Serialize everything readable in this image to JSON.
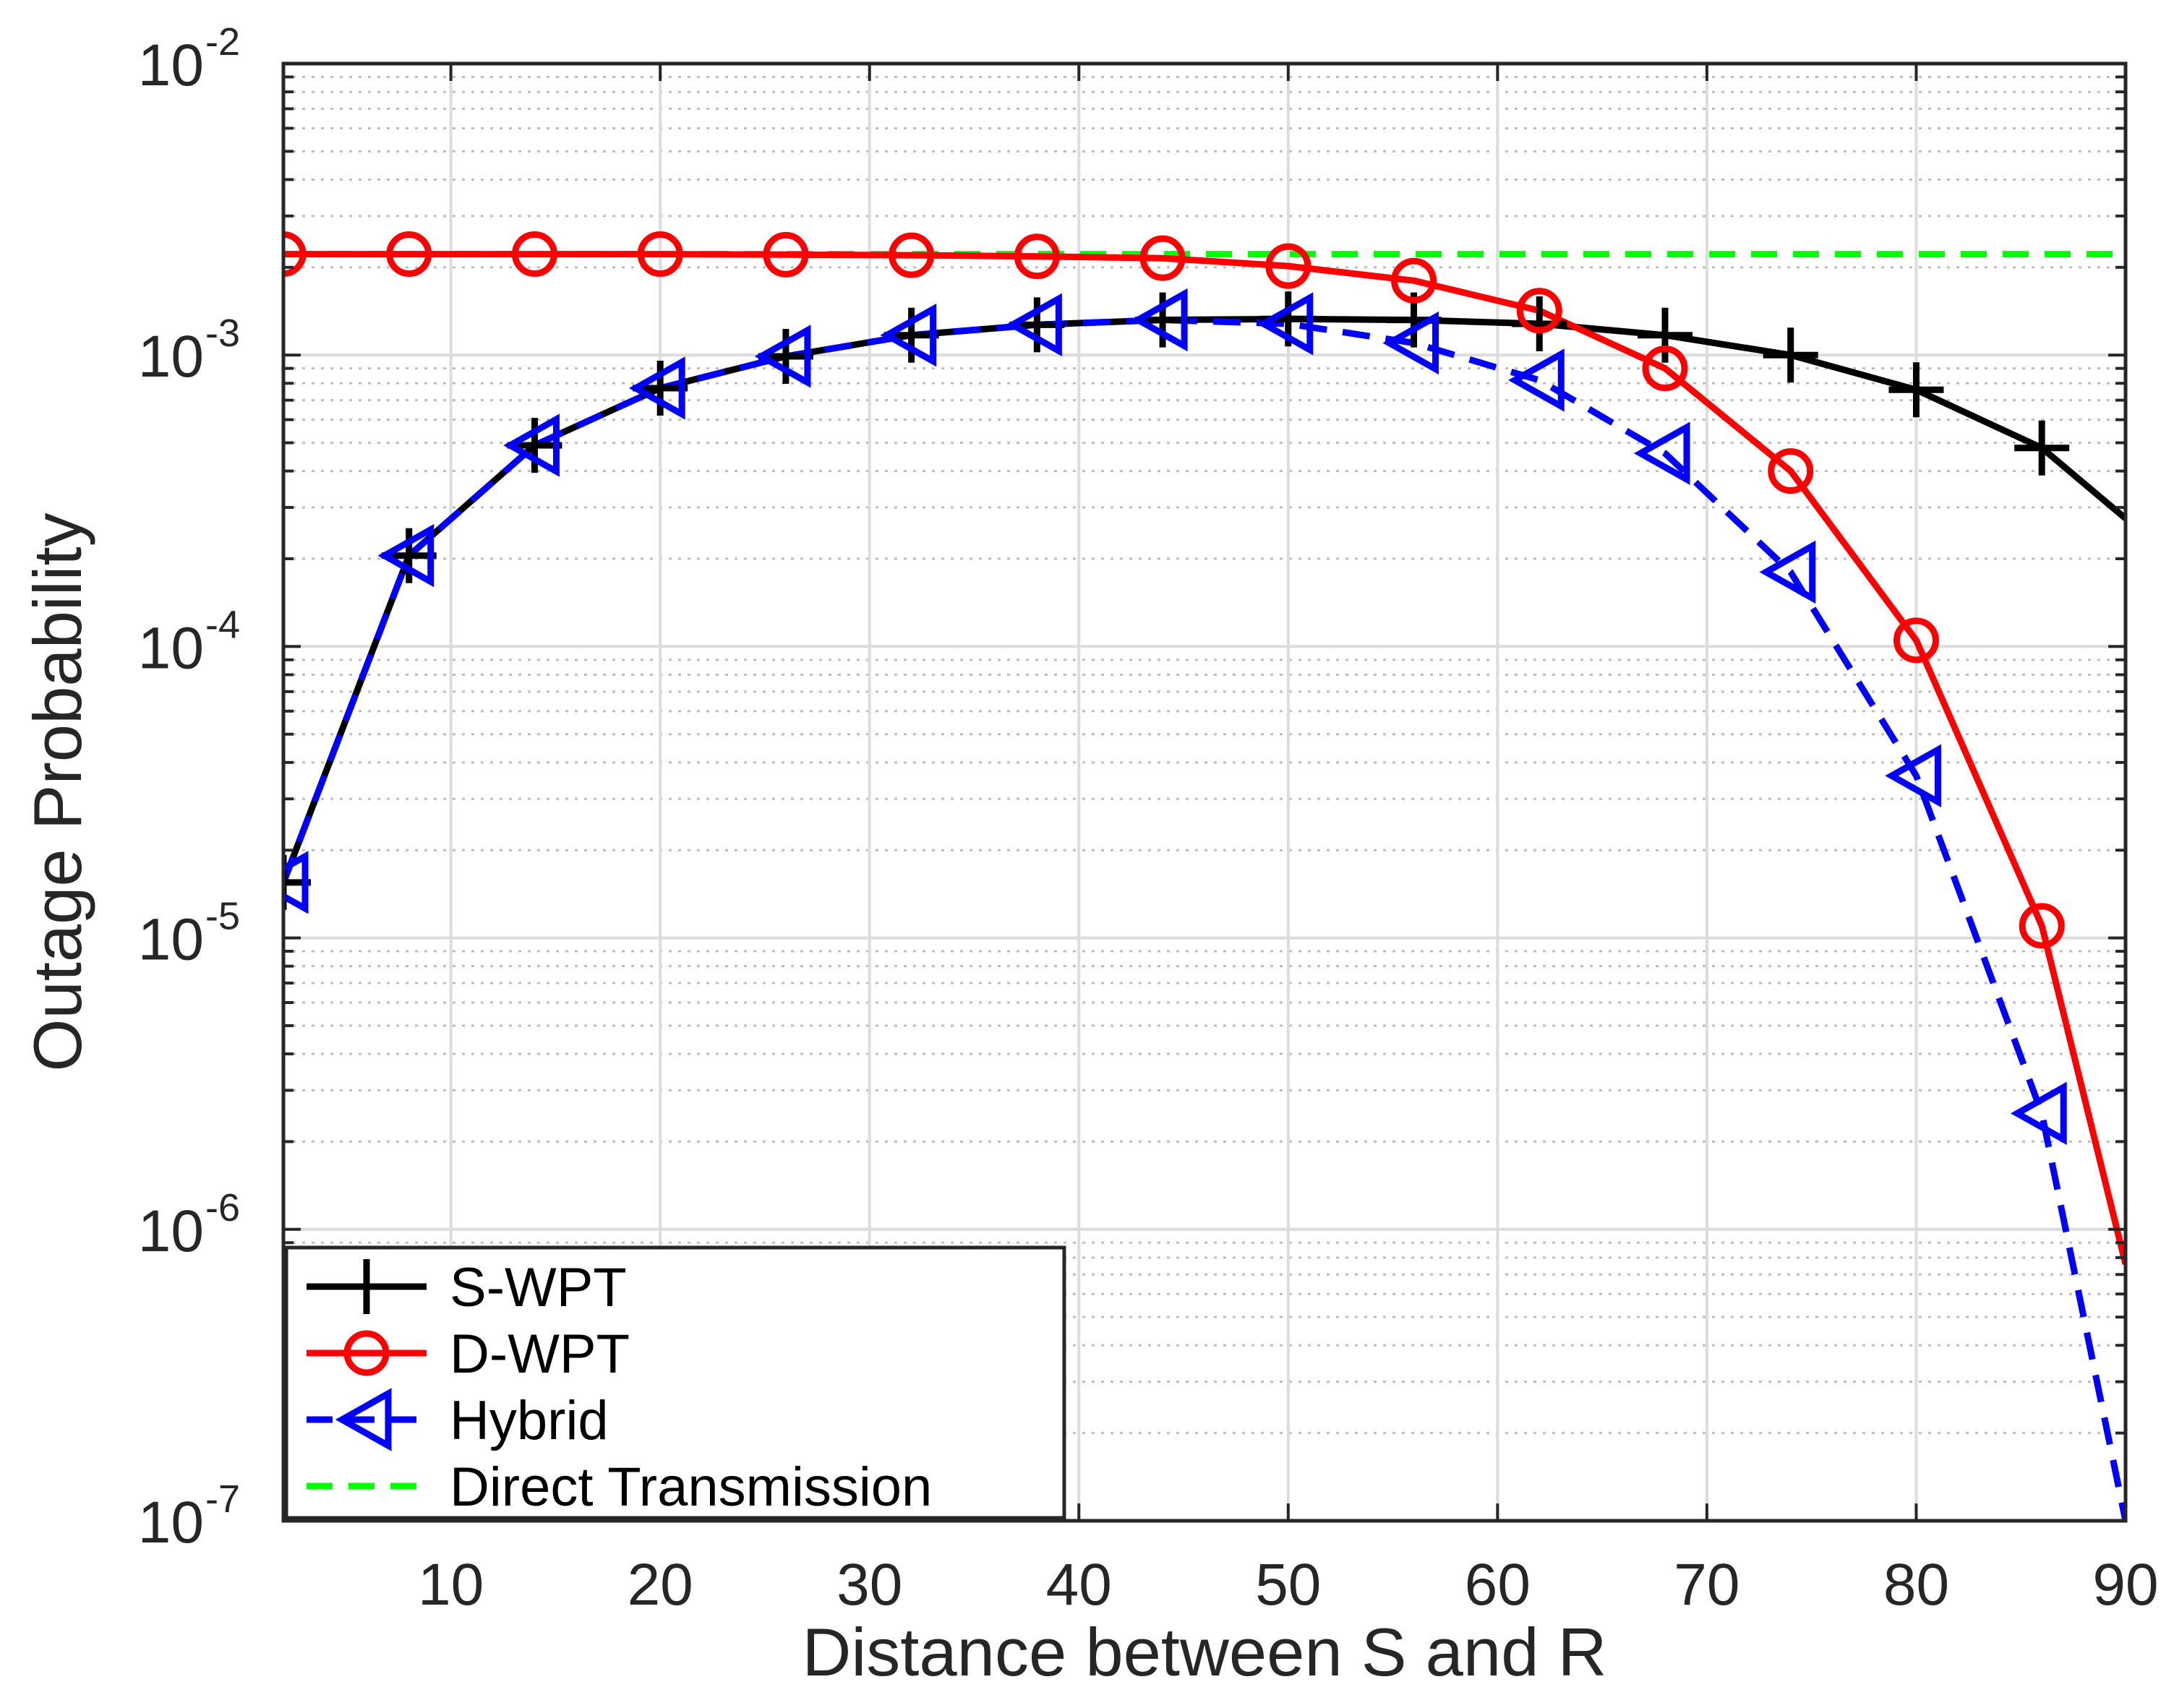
{
  "chart_data": {
    "type": "line",
    "xlabel": "Distance between S and R",
    "ylabel": "Outage Probability",
    "xlim": [
      2,
      90
    ],
    "ylim": [
      1e-07,
      0.01
    ],
    "yscale": "log",
    "grid": true,
    "minor_grid": true,
    "legend_position": "bottom-left",
    "x_ticks": [
      10,
      20,
      30,
      40,
      50,
      60,
      70,
      80,
      90
    ],
    "x_tick_labels": [
      "10",
      "20",
      "30",
      "40",
      "50",
      "60",
      "70",
      "80",
      "90"
    ],
    "y_ticks": [
      {
        "base": "10",
        "exp": "-7",
        "value": 1e-07
      },
      {
        "base": "10",
        "exp": "-6",
        "value": 1e-06
      },
      {
        "base": "10",
        "exp": "-5",
        "value": 1e-05
      },
      {
        "base": "10",
        "exp": "-4",
        "value": 0.0001
      },
      {
        "base": "10",
        "exp": "-3",
        "value": 0.001
      },
      {
        "base": "10",
        "exp": "-2",
        "value": 0.01
      }
    ],
    "series": [
      {
        "name": "S-WPT",
        "color": "#000000",
        "line": "solid",
        "marker": "plus",
        "x": [
          2,
          8,
          14,
          20,
          26,
          32,
          38,
          44,
          50,
          56,
          62,
          68,
          74,
          80,
          86,
          90
        ],
        "y": [
          1.55e-05,
          0.000205,
          0.00049,
          0.00077,
          0.00099,
          0.00117,
          0.00127,
          0.00132,
          0.00133,
          0.00132,
          0.00128,
          0.00117,
          0.001,
          0.00076,
          0.00048,
          0.000275
        ],
        "marker_x": [
          2,
          8,
          14,
          20,
          26,
          32,
          38,
          44,
          50,
          56,
          62,
          68,
          74,
          80,
          86
        ]
      },
      {
        "name": "D-WPT",
        "color": "#ff0000",
        "line": "solid",
        "marker": "circle",
        "x": [
          2,
          8,
          14,
          20,
          26,
          32,
          38,
          44,
          50,
          56,
          62,
          68,
          74,
          80,
          86,
          90
        ],
        "y": [
          0.00222,
          0.00222,
          0.00222,
          0.00222,
          0.00221,
          0.0022,
          0.00218,
          0.00215,
          0.00202,
          0.0018,
          0.00142,
          0.0009,
          0.0004,
          0.000105,
          1.1e-05,
          7.6e-07
        ],
        "marker_x": [
          2,
          8,
          14,
          20,
          26,
          32,
          38,
          44,
          50,
          56,
          62,
          68,
          74,
          80,
          86
        ]
      },
      {
        "name": "Hybrid",
        "color": "#0000ff",
        "line": "dashed",
        "marker": "triangle-left",
        "x": [
          2,
          8,
          14,
          20,
          26,
          32,
          38,
          44,
          50,
          56,
          62,
          68,
          74,
          80,
          86,
          90
        ],
        "y": [
          1.55e-05,
          0.000205,
          0.00049,
          0.00077,
          0.00099,
          0.00117,
          0.00127,
          0.00132,
          0.00128,
          0.0011,
          0.00082,
          0.00046,
          0.00018,
          3.6e-05,
          2.5e-06,
          1e-07
        ],
        "marker_x": [
          2,
          8,
          14,
          20,
          26,
          32,
          38,
          44,
          50,
          56,
          62,
          68,
          74,
          80,
          86
        ]
      },
      {
        "name": "Direct Transmission",
        "color": "#00ff00",
        "line": "dashed",
        "marker": "none",
        "x": [
          2,
          90
        ],
        "y": [
          0.00222,
          0.00222
        ],
        "marker_x": []
      }
    ]
  }
}
